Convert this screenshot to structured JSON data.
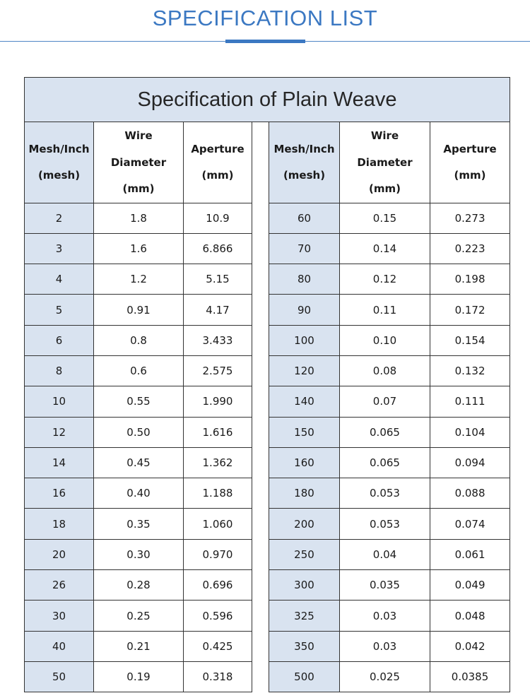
{
  "page_title": "SPECIFICATION LIST",
  "table": {
    "caption": "Specification of Plain Weave",
    "headers": {
      "mesh": [
        "Mesh/Inch",
        "(mesh)"
      ],
      "wire": [
        "Wire",
        "Diameter",
        "(mm)"
      ],
      "aperture": [
        "Aperture",
        "(mm)"
      ]
    },
    "rows": [
      {
        "left": {
          "mesh": "2",
          "wire": "1.8",
          "aperture": "10.9"
        },
        "right": {
          "mesh": "60",
          "wire": "0.15",
          "aperture": "0.273"
        }
      },
      {
        "left": {
          "mesh": "3",
          "wire": "1.6",
          "aperture": "6.866"
        },
        "right": {
          "mesh": "70",
          "wire": "0.14",
          "aperture": "0.223"
        }
      },
      {
        "left": {
          "mesh": "4",
          "wire": "1.2",
          "aperture": "5.15"
        },
        "right": {
          "mesh": "80",
          "wire": "0.12",
          "aperture": "0.198"
        }
      },
      {
        "left": {
          "mesh": "5",
          "wire": "0.91",
          "aperture": "4.17"
        },
        "right": {
          "mesh": "90",
          "wire": "0.11",
          "aperture": "0.172"
        }
      },
      {
        "left": {
          "mesh": "6",
          "wire": "0.8",
          "aperture": "3.433"
        },
        "right": {
          "mesh": "100",
          "wire": "0.10",
          "aperture": "0.154"
        }
      },
      {
        "left": {
          "mesh": "8",
          "wire": "0.6",
          "aperture": "2.575"
        },
        "right": {
          "mesh": "120",
          "wire": "0.08",
          "aperture": "0.132"
        }
      },
      {
        "left": {
          "mesh": "10",
          "wire": "0.55",
          "aperture": "1.990"
        },
        "right": {
          "mesh": "140",
          "wire": "0.07",
          "aperture": "0.111"
        }
      },
      {
        "left": {
          "mesh": "12",
          "wire": "0.50",
          "aperture": "1.616"
        },
        "right": {
          "mesh": "150",
          "wire": "0.065",
          "aperture": "0.104"
        }
      },
      {
        "left": {
          "mesh": "14",
          "wire": "0.45",
          "aperture": "1.362"
        },
        "right": {
          "mesh": "160",
          "wire": "0.065",
          "aperture": "0.094"
        }
      },
      {
        "left": {
          "mesh": "16",
          "wire": "0.40",
          "aperture": "1.188"
        },
        "right": {
          "mesh": "180",
          "wire": "0.053",
          "aperture": "0.088"
        }
      },
      {
        "left": {
          "mesh": "18",
          "wire": "0.35",
          "aperture": "1.060"
        },
        "right": {
          "mesh": "200",
          "wire": "0.053",
          "aperture": "0.074"
        }
      },
      {
        "left": {
          "mesh": "20",
          "wire": "0.30",
          "aperture": "0.970"
        },
        "right": {
          "mesh": "250",
          "wire": "0.04",
          "aperture": "0.061"
        }
      },
      {
        "left": {
          "mesh": "26",
          "wire": "0.28",
          "aperture": "0.696"
        },
        "right": {
          "mesh": "300",
          "wire": "0.035",
          "aperture": "0.049"
        }
      },
      {
        "left": {
          "mesh": "30",
          "wire": "0.25",
          "aperture": "0.596"
        },
        "right": {
          "mesh": "325",
          "wire": "0.03",
          "aperture": "0.048"
        }
      },
      {
        "left": {
          "mesh": "40",
          "wire": "0.21",
          "aperture": "0.425"
        },
        "right": {
          "mesh": "350",
          "wire": "0.03",
          "aperture": "0.042"
        }
      },
      {
        "left": {
          "mesh": "50",
          "wire": "0.19",
          "aperture": "0.318"
        },
        "right": {
          "mesh": "500",
          "wire": "0.025",
          "aperture": "0.0385"
        }
      }
    ]
  },
  "colors": {
    "title_blue": "#3b78c2",
    "header_fill": "#d9e3f0",
    "grid_line": "#333333"
  }
}
